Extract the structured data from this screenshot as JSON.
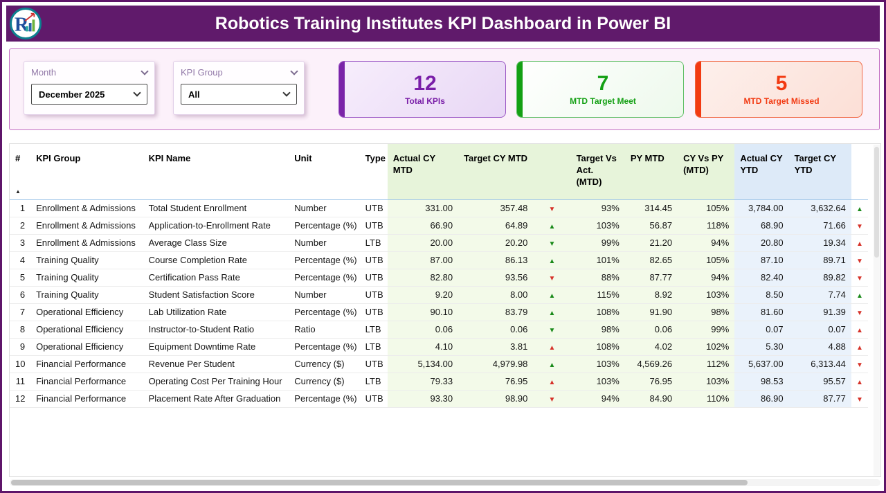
{
  "header": {
    "title": "Robotics Training Institutes KPI Dashboard in Power BI",
    "logo_text": "R"
  },
  "filters": {
    "month": {
      "label": "Month",
      "value": "December 2025"
    },
    "kpi_group": {
      "label": "KPI Group",
      "value": "All"
    }
  },
  "cards": [
    {
      "value": "12",
      "label": "Total KPIs",
      "accent_color": "#7a24a8"
    },
    {
      "value": "7",
      "label": "MTD Target Meet",
      "accent_color": "#14a014"
    },
    {
      "value": "5",
      "label": "MTD Target Missed",
      "accent_color": "#f23a12"
    }
  ],
  "table": {
    "columns": [
      "#",
      "KPI Group",
      "KPI Name",
      "Unit",
      "Type",
      "Actual CY MTD",
      "Target CY MTD",
      "",
      "Target Vs Act. (MTD)",
      "PY MTD",
      "CY Vs PY (MTD)",
      "Actual CY YTD",
      "Target CY YTD",
      ""
    ],
    "sort": {
      "column": "#",
      "direction": "ascending"
    },
    "trend_colors": {
      "green": "#1a8a1a",
      "red": "#d63229"
    },
    "rows": [
      {
        "num": "1",
        "group": "Enrollment & Admissions",
        "name": "Total Student Enrollment",
        "unit": "Number",
        "type": "UTB",
        "actual_mtd": "331.00",
        "target_mtd": "357.48",
        "mtd_dir": "down",
        "mtd_color": "red",
        "tva_mtd": "93%",
        "py_mtd": "314.45",
        "cy_vs_py": "105%",
        "actual_ytd": "3,784.00",
        "target_ytd": "3,632.64",
        "ytd_dir": "up",
        "ytd_color": "green"
      },
      {
        "num": "2",
        "group": "Enrollment & Admissions",
        "name": "Application-to-Enrollment Rate",
        "unit": "Percentage (%)",
        "type": "UTB",
        "actual_mtd": "66.90",
        "target_mtd": "64.89",
        "mtd_dir": "up",
        "mtd_color": "green",
        "tva_mtd": "103%",
        "py_mtd": "56.87",
        "cy_vs_py": "118%",
        "actual_ytd": "68.90",
        "target_ytd": "71.66",
        "ytd_dir": "down",
        "ytd_color": "red"
      },
      {
        "num": "3",
        "group": "Enrollment & Admissions",
        "name": "Average Class Size",
        "unit": "Number",
        "type": "LTB",
        "actual_mtd": "20.00",
        "target_mtd": "20.20",
        "mtd_dir": "down",
        "mtd_color": "green",
        "tva_mtd": "99%",
        "py_mtd": "21.20",
        "cy_vs_py": "94%",
        "actual_ytd": "20.80",
        "target_ytd": "19.34",
        "ytd_dir": "up",
        "ytd_color": "red"
      },
      {
        "num": "4",
        "group": "Training Quality",
        "name": "Course Completion Rate",
        "unit": "Percentage (%)",
        "type": "UTB",
        "actual_mtd": "87.00",
        "target_mtd": "86.13",
        "mtd_dir": "up",
        "mtd_color": "green",
        "tva_mtd": "101%",
        "py_mtd": "82.65",
        "cy_vs_py": "105%",
        "actual_ytd": "87.10",
        "target_ytd": "89.71",
        "ytd_dir": "down",
        "ytd_color": "red"
      },
      {
        "num": "5",
        "group": "Training Quality",
        "name": "Certification Pass Rate",
        "unit": "Percentage (%)",
        "type": "UTB",
        "actual_mtd": "82.80",
        "target_mtd": "93.56",
        "mtd_dir": "down",
        "mtd_color": "red",
        "tva_mtd": "88%",
        "py_mtd": "87.77",
        "cy_vs_py": "94%",
        "actual_ytd": "82.40",
        "target_ytd": "89.82",
        "ytd_dir": "down",
        "ytd_color": "red"
      },
      {
        "num": "6",
        "group": "Training Quality",
        "name": "Student Satisfaction Score",
        "unit": "Number",
        "type": "UTB",
        "actual_mtd": "9.20",
        "target_mtd": "8.00",
        "mtd_dir": "up",
        "mtd_color": "green",
        "tva_mtd": "115%",
        "py_mtd": "8.92",
        "cy_vs_py": "103%",
        "actual_ytd": "8.50",
        "target_ytd": "7.74",
        "ytd_dir": "up",
        "ytd_color": "green"
      },
      {
        "num": "7",
        "group": "Operational Efficiency",
        "name": "Lab Utilization Rate",
        "unit": "Percentage (%)",
        "type": "UTB",
        "actual_mtd": "90.10",
        "target_mtd": "83.79",
        "mtd_dir": "up",
        "mtd_color": "green",
        "tva_mtd": "108%",
        "py_mtd": "91.90",
        "cy_vs_py": "98%",
        "actual_ytd": "81.60",
        "target_ytd": "91.39",
        "ytd_dir": "down",
        "ytd_color": "red"
      },
      {
        "num": "8",
        "group": "Operational Efficiency",
        "name": "Instructor-to-Student Ratio",
        "unit": "Ratio",
        "type": "LTB",
        "actual_mtd": "0.06",
        "target_mtd": "0.06",
        "mtd_dir": "down",
        "mtd_color": "green",
        "tva_mtd": "98%",
        "py_mtd": "0.06",
        "cy_vs_py": "99%",
        "actual_ytd": "0.07",
        "target_ytd": "0.07",
        "ytd_dir": "up",
        "ytd_color": "red"
      },
      {
        "num": "9",
        "group": "Operational Efficiency",
        "name": "Equipment Downtime Rate",
        "unit": "Percentage (%)",
        "type": "LTB",
        "actual_mtd": "4.10",
        "target_mtd": "3.81",
        "mtd_dir": "up",
        "mtd_color": "red",
        "tva_mtd": "108%",
        "py_mtd": "4.02",
        "cy_vs_py": "102%",
        "actual_ytd": "5.30",
        "target_ytd": "4.88",
        "ytd_dir": "up",
        "ytd_color": "red"
      },
      {
        "num": "10",
        "group": "Financial Performance",
        "name": "Revenue Per Student",
        "unit": "Currency ($)",
        "type": "UTB",
        "actual_mtd": "5,134.00",
        "target_mtd": "4,979.98",
        "mtd_dir": "up",
        "mtd_color": "green",
        "tva_mtd": "103%",
        "py_mtd": "4,569.26",
        "cy_vs_py": "112%",
        "actual_ytd": "5,637.00",
        "target_ytd": "6,313.44",
        "ytd_dir": "down",
        "ytd_color": "red"
      },
      {
        "num": "11",
        "group": "Financial Performance",
        "name": "Operating Cost Per Training Hour",
        "unit": "Currency ($)",
        "type": "LTB",
        "actual_mtd": "79.33",
        "target_mtd": "76.95",
        "mtd_dir": "up",
        "mtd_color": "red",
        "tva_mtd": "103%",
        "py_mtd": "76.95",
        "cy_vs_py": "103%",
        "actual_ytd": "98.53",
        "target_ytd": "95.57",
        "ytd_dir": "up",
        "ytd_color": "red"
      },
      {
        "num": "12",
        "group": "Financial Performance",
        "name": "Placement Rate After Graduation",
        "unit": "Percentage (%)",
        "type": "UTB",
        "actual_mtd": "93.30",
        "target_mtd": "98.90",
        "mtd_dir": "down",
        "mtd_color": "red",
        "tva_mtd": "94%",
        "py_mtd": "84.90",
        "cy_vs_py": "110%",
        "actual_ytd": "86.90",
        "target_ytd": "87.77",
        "ytd_dir": "down",
        "ytd_color": "red"
      }
    ]
  }
}
